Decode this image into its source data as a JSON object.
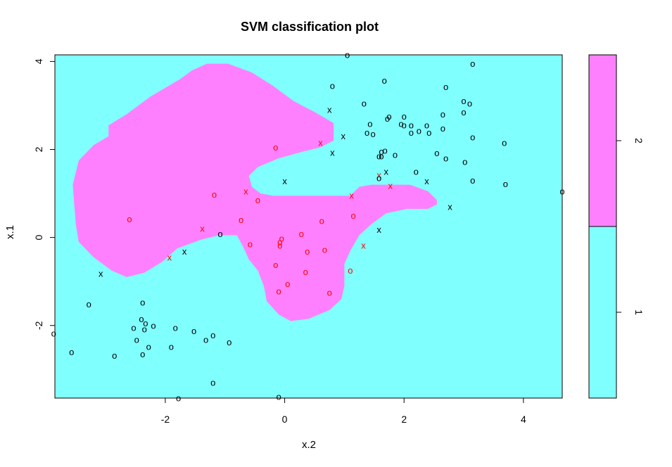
{
  "chart_data": {
    "type": "scatter",
    "title": "SVM classification plot",
    "xlabel": "x.2",
    "ylabel": "x.1",
    "xlim": [
      -3.85,
      4.65
    ],
    "ylim": [
      -3.65,
      4.15
    ],
    "xticks": [
      -2,
      0,
      2,
      4
    ],
    "yticks": [
      -2,
      0,
      2,
      4
    ],
    "x_tick_labels": [
      "-2",
      "0",
      "2",
      "4"
    ],
    "y_tick_labels": [
      "-2",
      "0",
      "2",
      "4"
    ],
    "grid": false,
    "colors": {
      "class1": "#80ffff",
      "class2": "#ff80ff",
      "axis": "#000000",
      "class2_marker": "#ff0000",
      "class1_marker": "#000000"
    },
    "legend": {
      "placement": "right",
      "entries": [
        {
          "label": "1",
          "color": "#80ffff",
          "range": [
            0.5,
            1.5
          ]
        },
        {
          "label": "2",
          "color": "#ff80ff",
          "range": [
            1.5,
            2.5
          ]
        }
      ],
      "range": [
        0.5,
        2.5
      ],
      "tick_labels": [
        "1",
        "2"
      ]
    },
    "region_class2_boundary": [
      [
        -3.45,
        1.75
      ],
      [
        -3.2,
        2.1
      ],
      [
        -2.95,
        2.3
      ],
      [
        -2.95,
        2.55
      ],
      [
        -2.65,
        2.8
      ],
      [
        -2.25,
        3.2
      ],
      [
        -1.75,
        3.6
      ],
      [
        -1.55,
        3.8
      ],
      [
        -1.3,
        3.95
      ],
      [
        -0.95,
        3.95
      ],
      [
        -0.55,
        3.75
      ],
      [
        -0.2,
        3.45
      ],
      [
        0.15,
        3.1
      ],
      [
        0.5,
        2.85
      ],
      [
        0.82,
        2.6
      ],
      [
        0.82,
        2.2
      ],
      [
        0.6,
        2.05
      ],
      [
        0.3,
        1.95
      ],
      [
        -0.1,
        1.8
      ],
      [
        -0.45,
        1.6
      ],
      [
        -0.6,
        1.4
      ],
      [
        -0.55,
        1.15
      ],
      [
        -0.4,
        1.0
      ],
      [
        -0.2,
        0.95
      ],
      [
        1.1,
        0.95
      ],
      [
        1.25,
        1.15
      ],
      [
        1.45,
        1.2
      ],
      [
        2.1,
        1.2
      ],
      [
        2.4,
        1.05
      ],
      [
        2.55,
        0.85
      ],
      [
        2.55,
        0.75
      ],
      [
        2.4,
        0.65
      ],
      [
        2.05,
        0.65
      ],
      [
        1.7,
        0.55
      ],
      [
        1.45,
        0.3
      ],
      [
        1.25,
        0.05
      ],
      [
        1.1,
        -0.3
      ],
      [
        1.0,
        -0.6
      ],
      [
        1.0,
        -1.1
      ],
      [
        0.95,
        -1.4
      ],
      [
        0.75,
        -1.65
      ],
      [
        0.4,
        -1.85
      ],
      [
        0.1,
        -1.9
      ],
      [
        -0.1,
        -1.75
      ],
      [
        -0.3,
        -1.45
      ],
      [
        -0.35,
        -1.1
      ],
      [
        -0.45,
        -0.75
      ],
      [
        -0.6,
        -0.5
      ],
      [
        -0.7,
        -0.2
      ],
      [
        -0.8,
        0.05
      ],
      [
        -1.1,
        0.05
      ],
      [
        -1.4,
        -0.05
      ],
      [
        -1.8,
        -0.25
      ],
      [
        -2.05,
        -0.55
      ],
      [
        -2.35,
        -0.8
      ],
      [
        -2.65,
        -0.9
      ],
      [
        -2.9,
        -0.75
      ],
      [
        -3.2,
        -0.45
      ],
      [
        -3.45,
        -0.1
      ],
      [
        -3.5,
        0.3
      ],
      [
        -3.55,
        1.2
      ]
    ],
    "points": [
      {
        "x": 1.05,
        "y": 4.15,
        "m": "o",
        "c": 1
      },
      {
        "x": 3.15,
        "y": 3.95,
        "m": "o",
        "c": 1
      },
      {
        "x": 1.67,
        "y": 3.57,
        "m": "o",
        "c": 1
      },
      {
        "x": 0.8,
        "y": 3.45,
        "m": "o",
        "c": 1
      },
      {
        "x": 2.7,
        "y": 3.42,
        "m": "o",
        "c": 1
      },
      {
        "x": 1.33,
        "y": 3.05,
        "m": "o",
        "c": 1
      },
      {
        "x": 3.0,
        "y": 3.1,
        "m": "o",
        "c": 1
      },
      {
        "x": 3.1,
        "y": 3.05,
        "m": "o",
        "c": 1
      },
      {
        "x": 0.75,
        "y": 2.9,
        "m": "x",
        "c": 1
      },
      {
        "x": 3.0,
        "y": 2.85,
        "m": "o",
        "c": 1
      },
      {
        "x": 2.65,
        "y": 2.8,
        "m": "o",
        "c": 1
      },
      {
        "x": 1.75,
        "y": 2.75,
        "m": "o",
        "c": 1
      },
      {
        "x": 2.0,
        "y": 2.75,
        "m": "o",
        "c": 1
      },
      {
        "x": 1.72,
        "y": 2.7,
        "m": "o",
        "c": 1
      },
      {
        "x": 1.43,
        "y": 2.58,
        "m": "o",
        "c": 1
      },
      {
        "x": 1.95,
        "y": 2.58,
        "m": "o",
        "c": 1
      },
      {
        "x": 2.0,
        "y": 2.55,
        "m": "o",
        "c": 1
      },
      {
        "x": 2.12,
        "y": 2.55,
        "m": "o",
        "c": 1
      },
      {
        "x": 2.38,
        "y": 2.55,
        "m": "o",
        "c": 1
      },
      {
        "x": 2.65,
        "y": 2.48,
        "m": "o",
        "c": 1
      },
      {
        "x": 2.25,
        "y": 2.42,
        "m": "o",
        "c": 1
      },
      {
        "x": 1.38,
        "y": 2.38,
        "m": "o",
        "c": 1
      },
      {
        "x": 1.48,
        "y": 2.35,
        "m": "o",
        "c": 1
      },
      {
        "x": 2.12,
        "y": 2.38,
        "m": "o",
        "c": 1
      },
      {
        "x": 2.42,
        "y": 2.38,
        "m": "o",
        "c": 1
      },
      {
        "x": 0.98,
        "y": 2.3,
        "m": "x",
        "c": 1
      },
      {
        "x": 3.15,
        "y": 2.28,
        "m": "o",
        "c": 1
      },
      {
        "x": 3.68,
        "y": 2.15,
        "m": "o",
        "c": 1
      },
      {
        "x": 0.6,
        "y": 2.15,
        "m": "x",
        "c": 2
      },
      {
        "x": -0.15,
        "y": 2.05,
        "m": "o",
        "c": 2
      },
      {
        "x": 0.8,
        "y": 1.93,
        "m": "x",
        "c": 1
      },
      {
        "x": 1.62,
        "y": 1.95,
        "m": "o",
        "c": 1
      },
      {
        "x": 1.68,
        "y": 1.98,
        "m": "o",
        "c": 1
      },
      {
        "x": 2.55,
        "y": 1.92,
        "m": "o",
        "c": 1
      },
      {
        "x": 1.62,
        "y": 1.85,
        "m": "o",
        "c": 1
      },
      {
        "x": 1.85,
        "y": 1.88,
        "m": "o",
        "c": 1
      },
      {
        "x": 1.58,
        "y": 1.85,
        "m": "o",
        "c": 1
      },
      {
        "x": 2.7,
        "y": 1.8,
        "m": "o",
        "c": 1
      },
      {
        "x": 3.02,
        "y": 1.72,
        "m": "o",
        "c": 1
      },
      {
        "x": 2.2,
        "y": 1.5,
        "m": "o",
        "c": 1
      },
      {
        "x": 1.7,
        "y": 1.5,
        "m": "x",
        "c": 1
      },
      {
        "x": 1.58,
        "y": 1.42,
        "m": "x",
        "c": 2
      },
      {
        "x": 1.58,
        "y": 1.35,
        "m": "o",
        "c": 1
      },
      {
        "x": 3.15,
        "y": 1.3,
        "m": "o",
        "c": 1
      },
      {
        "x": 0.0,
        "y": 1.28,
        "m": "x",
        "c": 1
      },
      {
        "x": 2.38,
        "y": 1.28,
        "m": "x",
        "c": 1
      },
      {
        "x": 3.7,
        "y": 1.22,
        "m": "o",
        "c": 1
      },
      {
        "x": 1.77,
        "y": 1.18,
        "m": "x",
        "c": 2
      },
      {
        "x": 4.65,
        "y": 1.05,
        "m": "o",
        "c": 1
      },
      {
        "x": -0.65,
        "y": 1.05,
        "m": "x",
        "c": 2
      },
      {
        "x": -1.18,
        "y": 0.98,
        "m": "o",
        "c": 2
      },
      {
        "x": 1.12,
        "y": 0.95,
        "m": "x",
        "c": 2
      },
      {
        "x": -0.45,
        "y": 0.85,
        "m": "o",
        "c": 2
      },
      {
        "x": 2.77,
        "y": 0.7,
        "m": "x",
        "c": 1
      },
      {
        "x": 1.15,
        "y": 0.5,
        "m": "o",
        "c": 2
      },
      {
        "x": -2.6,
        "y": 0.42,
        "m": "o",
        "c": 2
      },
      {
        "x": -0.73,
        "y": 0.4,
        "m": "o",
        "c": 2
      },
      {
        "x": 0.62,
        "y": 0.38,
        "m": "o",
        "c": 2
      },
      {
        "x": -1.38,
        "y": 0.2,
        "m": "x",
        "c": 2
      },
      {
        "x": 1.58,
        "y": 0.18,
        "m": "x",
        "c": 1
      },
      {
        "x": -1.08,
        "y": 0.08,
        "m": "o",
        "c": 1
      },
      {
        "x": 0.28,
        "y": 0.08,
        "m": "o",
        "c": 2
      },
      {
        "x": -0.05,
        "y": -0.02,
        "m": "o",
        "c": 2
      },
      {
        "x": -0.08,
        "y": -0.1,
        "m": "o",
        "c": 2
      },
      {
        "x": -0.58,
        "y": -0.15,
        "m": "o",
        "c": 2
      },
      {
        "x": -0.08,
        "y": -0.18,
        "m": "o",
        "c": 2
      },
      {
        "x": 1.32,
        "y": -0.18,
        "m": "x",
        "c": 2
      },
      {
        "x": 0.67,
        "y": -0.28,
        "m": "o",
        "c": 2
      },
      {
        "x": 0.38,
        "y": -0.32,
        "m": "o",
        "c": 2
      },
      {
        "x": -1.68,
        "y": -0.32,
        "m": "x",
        "c": 1
      },
      {
        "x": -1.93,
        "y": -0.45,
        "m": "x",
        "c": 2
      },
      {
        "x": -0.15,
        "y": -0.62,
        "m": "o",
        "c": 2
      },
      {
        "x": 1.1,
        "y": -0.75,
        "m": "o",
        "c": 2
      },
      {
        "x": 0.35,
        "y": -0.78,
        "m": "o",
        "c": 2
      },
      {
        "x": -3.08,
        "y": -0.82,
        "m": "x",
        "c": 1
      },
      {
        "x": 0.05,
        "y": -1.05,
        "m": "o",
        "c": 2
      },
      {
        "x": -0.1,
        "y": -1.22,
        "m": "o",
        "c": 2
      },
      {
        "x": 0.75,
        "y": -1.25,
        "m": "o",
        "c": 2
      },
      {
        "x": -3.28,
        "y": -1.52,
        "m": "o",
        "c": 1
      },
      {
        "x": -2.38,
        "y": -1.48,
        "m": "o",
        "c": 1
      },
      {
        "x": -2.4,
        "y": -1.85,
        "m": "o",
        "c": 1
      },
      {
        "x": -2.33,
        "y": -1.95,
        "m": "o",
        "c": 1
      },
      {
        "x": -2.2,
        "y": -2.0,
        "m": "o",
        "c": 1
      },
      {
        "x": -1.83,
        "y": -2.05,
        "m": "o",
        "c": 1
      },
      {
        "x": -2.53,
        "y": -2.05,
        "m": "o",
        "c": 1
      },
      {
        "x": -2.35,
        "y": -2.08,
        "m": "o",
        "c": 1
      },
      {
        "x": -1.52,
        "y": -2.12,
        "m": "o",
        "c": 1
      },
      {
        "x": -3.87,
        "y": -2.18,
        "m": "o",
        "c": 1
      },
      {
        "x": -1.2,
        "y": -2.22,
        "m": "o",
        "c": 1
      },
      {
        "x": -1.32,
        "y": -2.32,
        "m": "o",
        "c": 1
      },
      {
        "x": -2.48,
        "y": -2.32,
        "m": "o",
        "c": 1
      },
      {
        "x": -0.93,
        "y": -2.38,
        "m": "o",
        "c": 1
      },
      {
        "x": -2.28,
        "y": -2.48,
        "m": "o",
        "c": 1
      },
      {
        "x": -1.9,
        "y": -2.48,
        "m": "o",
        "c": 1
      },
      {
        "x": -3.57,
        "y": -2.6,
        "m": "o",
        "c": 1
      },
      {
        "x": -2.38,
        "y": -2.65,
        "m": "o",
        "c": 1
      },
      {
        "x": -2.85,
        "y": -2.68,
        "m": "o",
        "c": 1
      },
      {
        "x": -1.2,
        "y": -3.3,
        "m": "o",
        "c": 1
      },
      {
        "x": -1.78,
        "y": -3.65,
        "m": "o",
        "c": 1
      },
      {
        "x": -0.1,
        "y": -3.62,
        "m": "o",
        "c": 1
      }
    ]
  }
}
